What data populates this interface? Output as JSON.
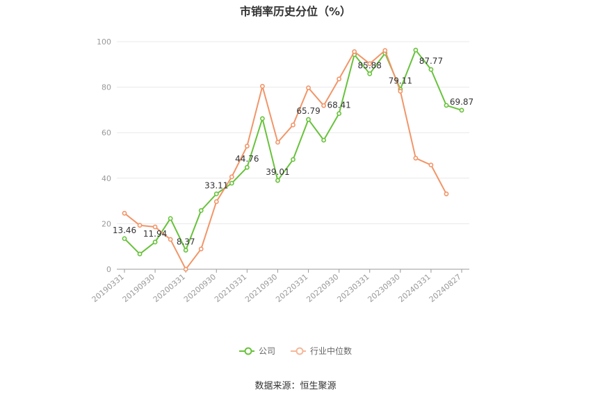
{
  "title": "市销率历史分位（%）",
  "source": "数据来源：恒生聚源",
  "colors": {
    "company": "#67c23a",
    "industry": "#f29568",
    "grid": "#e8e8e8",
    "axis": "#999999"
  },
  "chart_data": {
    "type": "line",
    "title": "市销率历史分位（%）",
    "x": [
      "20190331",
      "20190630",
      "20190930",
      "20191231",
      "20200331",
      "20200630",
      "20200930",
      "20201231",
      "20210331",
      "20210630",
      "20210930",
      "20211231",
      "20220331",
      "20220630",
      "20220930",
      "20221231",
      "20230331",
      "20230630",
      "20230930",
      "20231231",
      "20240331",
      "20240630",
      "20240827"
    ],
    "x_tick_labels": [
      "20190331",
      "20190930",
      "20200331",
      "20200930",
      "20210331",
      "20210930",
      "20220331",
      "20220930",
      "20230331",
      "20230930",
      "20240331",
      "20240827"
    ],
    "y_ticks": [
      0,
      20,
      40,
      60,
      80,
      100
    ],
    "ylim": [
      0,
      100
    ],
    "grid": true,
    "legend_position": "bottom",
    "series": [
      {
        "name": "公司",
        "values": [
          13.46,
          6.7,
          11.94,
          22.3,
          8.37,
          25.8,
          33.11,
          37.8,
          44.76,
          66.2,
          39.01,
          48.2,
          65.79,
          56.7,
          68.41,
          94.3,
          85.88,
          94.9,
          79.11,
          96.3,
          87.77,
          72.0,
          69.87
        ],
        "labels": {
          "0": "13.46",
          "2": "11.94",
          "4": "8.37",
          "6": "33.11",
          "8": "44.76",
          "10": "39.01",
          "12": "65.79",
          "14": "68.41",
          "16": "85.88",
          "18": "79.11",
          "20": "87.77",
          "22": "69.87"
        }
      },
      {
        "name": "行业中位数",
        "values": [
          24.6,
          19.3,
          18.6,
          13.1,
          0.0,
          8.9,
          29.7,
          40.6,
          54.1,
          80.4,
          55.8,
          63.4,
          79.7,
          71.9,
          83.6,
          95.6,
          90.3,
          96.1,
          78.2,
          48.8,
          45.8,
          33.1,
          null
        ]
      }
    ]
  }
}
